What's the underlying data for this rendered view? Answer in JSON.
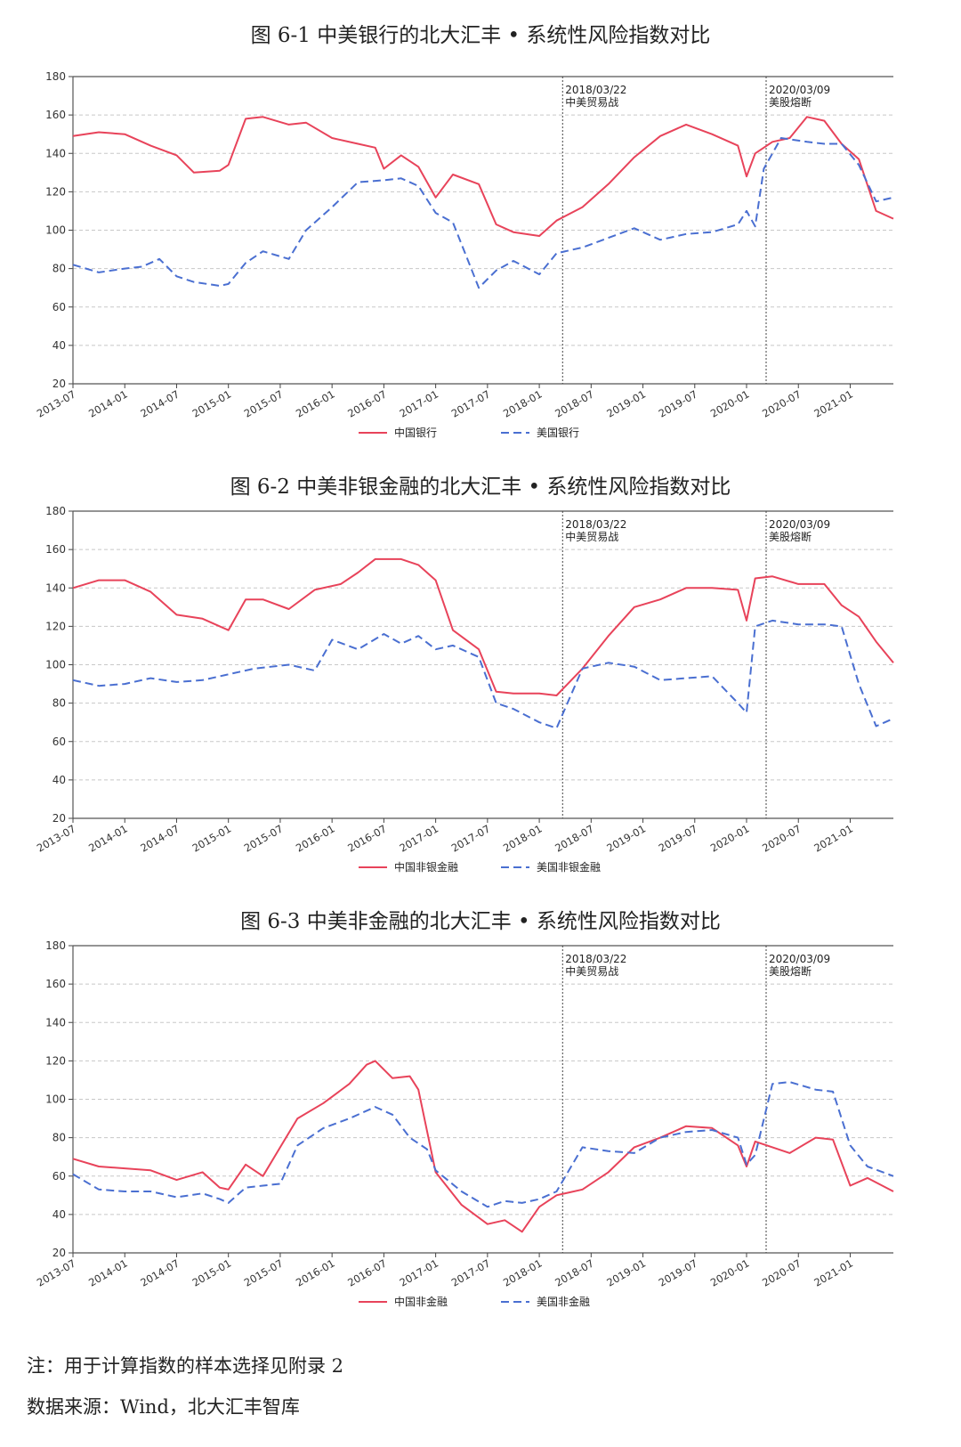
{
  "figures": [
    {
      "title": "图 6-1  中美银行的北大汇丰 • 系统性风险指数对比"
    },
    {
      "title": "图 6-2  中美非银金融的北大汇丰 • 系统性风险指数对比"
    },
    {
      "title": "图 6-3  中美非金融的北大汇丰 • 系统性风险指数对比"
    }
  ],
  "notes": {
    "sample": "注：用于计算指数的样本选择见附录 2",
    "source": "数据来源：Wind，北大汇丰智库"
  },
  "colors": {
    "china": "#e8435a",
    "usa": "#4a6fd1"
  },
  "chart_data": [
    {
      "type": "line",
      "xlabel": "",
      "ylabel": "",
      "ylim": [
        20,
        180
      ],
      "xlim": [
        "2013-07",
        "2021-06"
      ],
      "yticks": [
        20,
        40,
        60,
        80,
        100,
        120,
        140,
        160,
        180
      ],
      "xticks": [
        "2013-07",
        "2014-01",
        "2014-07",
        "2015-01",
        "2015-07",
        "2016-01",
        "2016-07",
        "2017-01",
        "2017-07",
        "2018-01",
        "2018-07",
        "2019-01",
        "2019-07",
        "2020-01",
        "2020-07",
        "2021-01"
      ],
      "grid": true,
      "legend": "bottom-center",
      "events": [
        {
          "x": "2018-03-22",
          "date": "2018/03/22",
          "label": "中美贸易战"
        },
        {
          "x": "2020-03-09",
          "date": "2020/03/09",
          "label": "美股熔断"
        }
      ],
      "series": [
        {
          "name": "中国银行",
          "style": "solid",
          "x": [
            "2013-07",
            "2013-10",
            "2014-01",
            "2014-04",
            "2014-07",
            "2014-09",
            "2014-12",
            "2015-01",
            "2015-03",
            "2015-05",
            "2015-08",
            "2015-10",
            "2016-01",
            "2016-04",
            "2016-06",
            "2016-07",
            "2016-09",
            "2016-11",
            "2017-01",
            "2017-03",
            "2017-06",
            "2017-08",
            "2017-10",
            "2018-01",
            "2018-03",
            "2018-06",
            "2018-09",
            "2018-12",
            "2019-03",
            "2019-06",
            "2019-09",
            "2019-12",
            "2020-01",
            "2020-02",
            "2020-04",
            "2020-06",
            "2020-08",
            "2020-10",
            "2020-12",
            "2021-02",
            "2021-04",
            "2021-06"
          ],
          "values": [
            149,
            151,
            150,
            144,
            139,
            130,
            131,
            134,
            158,
            159,
            155,
            156,
            148,
            145,
            143,
            132,
            139,
            133,
            117,
            129,
            124,
            103,
            99,
            97,
            105,
            112,
            124,
            138,
            149,
            155,
            150,
            144,
            128,
            140,
            146,
            148,
            159,
            157,
            145,
            137,
            110,
            106
          ]
        },
        {
          "name": "美国银行",
          "style": "dashed",
          "x": [
            "2013-07",
            "2013-10",
            "2014-01",
            "2014-03",
            "2014-05",
            "2014-07",
            "2014-09",
            "2014-12",
            "2015-01",
            "2015-03",
            "2015-05",
            "2015-08",
            "2015-10",
            "2016-01",
            "2016-04",
            "2016-07",
            "2016-09",
            "2016-11",
            "2017-01",
            "2017-03",
            "2017-06",
            "2017-08",
            "2017-10",
            "2018-01",
            "2018-03",
            "2018-06",
            "2018-09",
            "2018-12",
            "2019-03",
            "2019-06",
            "2019-09",
            "2019-12",
            "2020-01",
            "2020-02",
            "2020-03",
            "2020-05",
            "2020-08",
            "2020-10",
            "2020-12",
            "2021-02",
            "2021-04",
            "2021-06"
          ],
          "values": [
            82,
            78,
            80,
            81,
            85,
            76,
            73,
            71,
            72,
            83,
            89,
            85,
            100,
            112,
            125,
            126,
            127,
            123,
            109,
            104,
            70,
            79,
            84,
            77,
            88,
            91,
            96,
            101,
            95,
            98,
            99,
            103,
            110,
            102,
            132,
            148,
            146,
            145,
            145,
            134,
            115,
            117
          ]
        }
      ]
    },
    {
      "type": "line",
      "xlabel": "",
      "ylabel": "",
      "ylim": [
        20,
        180
      ],
      "xlim": [
        "2013-07",
        "2021-06"
      ],
      "yticks": [
        20,
        40,
        60,
        80,
        100,
        120,
        140,
        160,
        180
      ],
      "xticks": [
        "2013-07",
        "2014-01",
        "2014-07",
        "2015-01",
        "2015-07",
        "2016-01",
        "2016-07",
        "2017-01",
        "2017-07",
        "2018-01",
        "2018-07",
        "2019-01",
        "2019-07",
        "2020-01",
        "2020-07",
        "2021-01"
      ],
      "grid": true,
      "legend": "bottom-center",
      "events": [
        {
          "x": "2018-03-22",
          "date": "2018/03/22",
          "label": "中美贸易战"
        },
        {
          "x": "2020-03-09",
          "date": "2020/03/09",
          "label": "美股熔断"
        }
      ],
      "series": [
        {
          "name": "中国非银金融",
          "style": "solid",
          "x": [
            "2013-07",
            "2013-10",
            "2014-01",
            "2014-04",
            "2014-07",
            "2014-10",
            "2014-12",
            "2015-01",
            "2015-03",
            "2015-05",
            "2015-08",
            "2015-11",
            "2016-02",
            "2016-04",
            "2016-06",
            "2016-09",
            "2016-11",
            "2017-01",
            "2017-03",
            "2017-06",
            "2017-08",
            "2017-10",
            "2018-01",
            "2018-03",
            "2018-06",
            "2018-09",
            "2018-12",
            "2019-03",
            "2019-06",
            "2019-09",
            "2019-12",
            "2020-01",
            "2020-02",
            "2020-04",
            "2020-07",
            "2020-10",
            "2020-12",
            "2021-02",
            "2021-04",
            "2021-06"
          ],
          "values": [
            140,
            144,
            144,
            138,
            126,
            124,
            120,
            118,
            134,
            134,
            129,
            139,
            142,
            148,
            155,
            155,
            152,
            144,
            118,
            108,
            86,
            85,
            85,
            84,
            98,
            115,
            130,
            134,
            140,
            140,
            139,
            123,
            145,
            146,
            142,
            142,
            131,
            125,
            112,
            101
          ]
        },
        {
          "name": "美国非银金融",
          "style": "dashed",
          "x": [
            "2013-07",
            "2013-10",
            "2014-01",
            "2014-04",
            "2014-07",
            "2014-10",
            "2015-01",
            "2015-04",
            "2015-08",
            "2015-11",
            "2016-01",
            "2016-04",
            "2016-07",
            "2016-09",
            "2016-11",
            "2017-01",
            "2017-03",
            "2017-06",
            "2017-08",
            "2017-10",
            "2018-01",
            "2018-03",
            "2018-06",
            "2018-09",
            "2018-12",
            "2019-03",
            "2019-06",
            "2019-09",
            "2019-12",
            "2020-01",
            "2020-02",
            "2020-04",
            "2020-07",
            "2020-10",
            "2020-12",
            "2021-02",
            "2021-04",
            "2021-06"
          ],
          "values": [
            92,
            89,
            90,
            93,
            91,
            92,
            95,
            98,
            100,
            97,
            113,
            108,
            116,
            111,
            115,
            108,
            110,
            104,
            80,
            77,
            70,
            67,
            98,
            101,
            99,
            92,
            93,
            94,
            80,
            75,
            120,
            123,
            121,
            121,
            120,
            90,
            68,
            72
          ]
        }
      ]
    },
    {
      "type": "line",
      "xlabel": "",
      "ylabel": "",
      "ylim": [
        20,
        180
      ],
      "xlim": [
        "2013-07",
        "2021-06"
      ],
      "yticks": [
        20,
        40,
        60,
        80,
        100,
        120,
        140,
        160,
        180
      ],
      "xticks": [
        "2013-07",
        "2014-01",
        "2014-07",
        "2015-01",
        "2015-07",
        "2016-01",
        "2016-07",
        "2017-01",
        "2017-07",
        "2018-01",
        "2018-07",
        "2019-01",
        "2019-07",
        "2020-01",
        "2020-07",
        "2021-01"
      ],
      "grid": true,
      "legend": "bottom-center",
      "events": [
        {
          "x": "2018-03-22",
          "date": "2018/03/22",
          "label": "中美贸易战"
        },
        {
          "x": "2020-03-09",
          "date": "2020/03/09",
          "label": "美股熔断"
        }
      ],
      "series": [
        {
          "name": "中国非金融",
          "style": "solid",
          "x": [
            "2013-07",
            "2013-10",
            "2014-01",
            "2014-04",
            "2014-07",
            "2014-10",
            "2014-12",
            "2015-01",
            "2015-03",
            "2015-05",
            "2015-07",
            "2015-09",
            "2015-12",
            "2016-03",
            "2016-05",
            "2016-06",
            "2016-08",
            "2016-10",
            "2016-11",
            "2017-01",
            "2017-04",
            "2017-07",
            "2017-09",
            "2017-11",
            "2018-01",
            "2018-03",
            "2018-06",
            "2018-09",
            "2018-12",
            "2019-03",
            "2019-06",
            "2019-09",
            "2019-12",
            "2020-01",
            "2020-02",
            "2020-04",
            "2020-06",
            "2020-09",
            "2020-11",
            "2021-01",
            "2021-03",
            "2021-06"
          ],
          "values": [
            69,
            65,
            64,
            63,
            58,
            62,
            54,
            53,
            66,
            60,
            75,
            90,
            98,
            108,
            118,
            120,
            111,
            112,
            105,
            62,
            45,
            35,
            37,
            31,
            44,
            50,
            53,
            62,
            75,
            80,
            86,
            85,
            76,
            65,
            78,
            75,
            72,
            80,
            79,
            55,
            59,
            52
          ]
        },
        {
          "name": "美国非金融",
          "style": "dashed",
          "x": [
            "2013-07",
            "2013-10",
            "2014-01",
            "2014-04",
            "2014-07",
            "2014-10",
            "2014-12",
            "2015-01",
            "2015-03",
            "2015-05",
            "2015-07",
            "2015-09",
            "2015-12",
            "2016-03",
            "2016-06",
            "2016-08",
            "2016-10",
            "2016-12",
            "2017-01",
            "2017-04",
            "2017-07",
            "2017-09",
            "2017-11",
            "2018-01",
            "2018-03",
            "2018-06",
            "2018-09",
            "2018-12",
            "2019-03",
            "2019-06",
            "2019-09",
            "2019-12",
            "2020-01",
            "2020-02",
            "2020-04",
            "2020-06",
            "2020-09",
            "2020-11",
            "2021-01",
            "2021-03",
            "2021-06"
          ],
          "values": [
            61,
            53,
            52,
            52,
            49,
            51,
            48,
            46,
            54,
            55,
            56,
            76,
            85,
            90,
            96,
            92,
            80,
            74,
            63,
            52,
            44,
            47,
            46,
            48,
            52,
            75,
            73,
            72,
            80,
            83,
            84,
            80,
            66,
            71,
            108,
            109,
            105,
            104,
            76,
            65,
            60
          ]
        }
      ]
    }
  ]
}
